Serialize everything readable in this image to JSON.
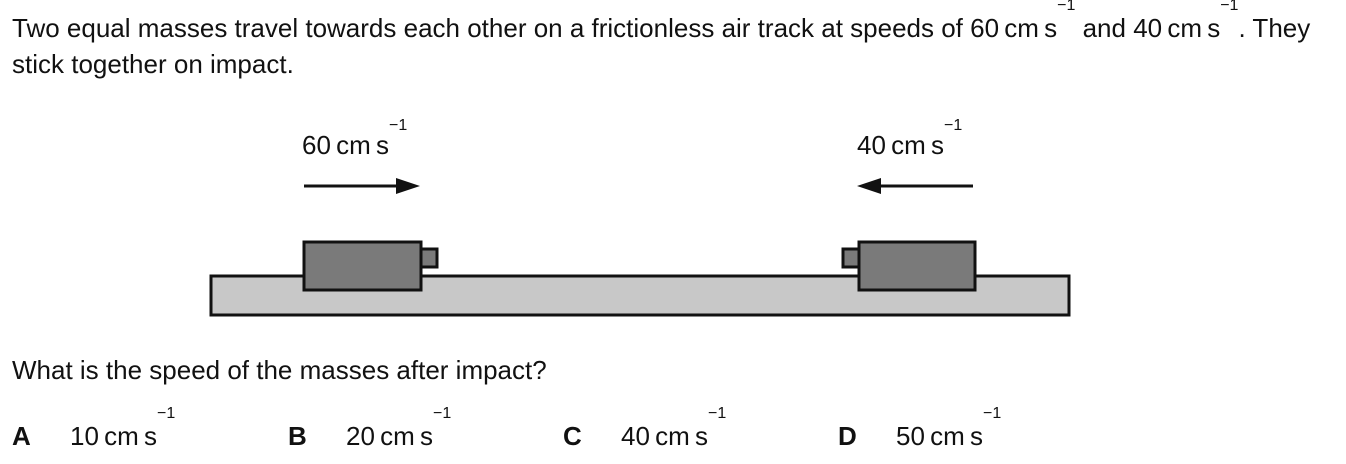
{
  "stem": {
    "part1": "Two equal masses travel towards each other on a frictionless air track at speeds of 60 cm s",
    "sup1": "−1",
    "part2": " and 40 cm s",
    "sup2": "−1",
    "part3": ". They stick together on impact."
  },
  "diagram": {
    "left_speed": "60 cm s",
    "left_speed_sup": "−1",
    "right_speed": "40 cm s",
    "right_speed_sup": "−1",
    "track_color": "#c8c8c8",
    "mass_color": "#7a7a7a"
  },
  "question": "What is the speed of the masses after impact?",
  "options": [
    {
      "letter": "A",
      "value": "10 cm s",
      "sup": "−1"
    },
    {
      "letter": "B",
      "value": "20 cm s",
      "sup": "−1"
    },
    {
      "letter": "C",
      "value": "40 cm s",
      "sup": "−1"
    },
    {
      "letter": "D",
      "value": "50 cm s",
      "sup": "−1"
    }
  ]
}
